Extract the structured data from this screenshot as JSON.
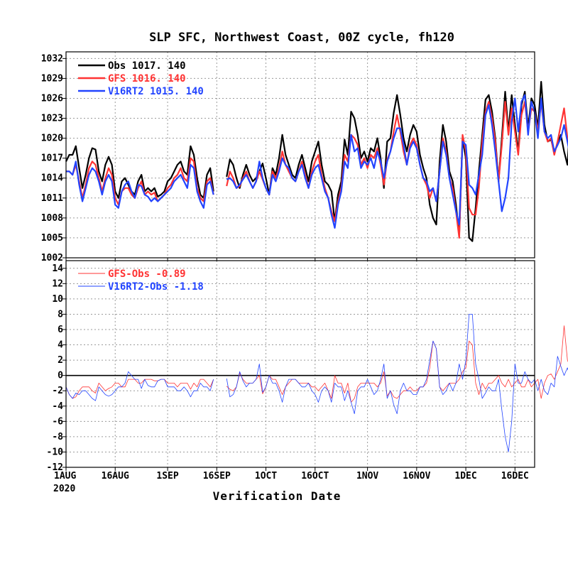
{
  "chart_data": [
    {
      "type": "line",
      "title": "SLP SFC, Northwest Coast, 00Z cycle, fh120",
      "xlabel": "Verification Date",
      "ylabel": "",
      "ylim": [
        1002,
        1033
      ],
      "yticks": [
        1002,
        1005,
        1008,
        1011,
        1014,
        1017,
        1020,
        1023,
        1026,
        1029,
        1032
      ],
      "x_start": "2020-08-01",
      "x_end": "2020-12-22",
      "xtick_labels": [
        "1AUG",
        "16AUG",
        "1SEP",
        "16SEP",
        "1OCT",
        "16OCT",
        "1NOV",
        "16NOV",
        "1DEC",
        "16DEC"
      ],
      "xtick_days": [
        0,
        15,
        31,
        46,
        61,
        76,
        92,
        107,
        122,
        137
      ],
      "x_sub_label": "2020",
      "grid": true,
      "legend_position": "top-left",
      "series": [
        {
          "name": "Obs",
          "legend_text": "Obs  1017.  140",
          "color": "#000000",
          "values": [
            1016.5,
            1017.5,
            1017.5,
            1018.8,
            1015.5,
            1012.5,
            1014.5,
            1017,
            1018.5,
            1018.3,
            1015,
            1013.5,
            1016,
            1017.2,
            1016,
            1012,
            1011,
            1013.5,
            1014,
            1013,
            1012,
            1011.5,
            1013.5,
            1014.5,
            1012,
            1012.5,
            1012,
            1012.5,
            1011.2,
            1011.5,
            1012,
            1013.5,
            1014,
            1015,
            1016,
            1016.5,
            1015,
            1014.5,
            1018.8,
            1017.5,
            1014,
            1011.5,
            1011,
            1014.5,
            1015.5,
            1012,
            null,
            null,
            null,
            1014.2,
            1016.8,
            1016,
            1014,
            1012.5,
            1014.5,
            1016,
            1014.5,
            1013.5,
            1014,
            1015,
            1016.2,
            1014,
            1011.5,
            1015.5,
            1014.5,
            1017,
            1020.5,
            1017.5,
            1016,
            1014.5,
            1014,
            1016,
            1017.5,
            1015.5,
            1013.5,
            1016.5,
            1018,
            1019.5,
            1016,
            1013.5,
            1013,
            1012,
            1007.5,
            1011.5,
            1013.5,
            1019.8,
            1017.5,
            1024,
            1023,
            1020.5,
            1017,
            1018,
            1016.5,
            1018.5,
            1018,
            1020,
            1017,
            1012.5,
            1019.5,
            1020,
            1023.8,
            1026.5,
            1023.5,
            1020,
            1018,
            1020.5,
            1022,
            1021,
            1017.5,
            1015.5,
            1014,
            1010,
            1008,
            1007,
            1016.5,
            1022,
            1019.5,
            1015,
            1013.5,
            1010,
            1005.5,
            1020,
            1017,
            1005,
            1004.5,
            1009.5,
            1015,
            1020.5,
            1025.8,
            1026.5,
            1024,
            1020,
            1013.5,
            1020,
            1027,
            1021,
            1026.5,
            1022,
            1018,
            1025,
            1027,
            1021.5,
            1026,
            1025,
            1021.5,
            1028.5,
            1022,
            1019.5,
            1019.8,
            1018,
            1019,
            1020.5,
            1018,
            1016,
            1023.5,
            1025,
            1017.5,
            1014,
            1009.5,
            1018.5,
            1020.5,
            1022.5
          ]
        },
        {
          "name": "GFS",
          "legend_text": "GFS  1016.  140",
          "color": "#ff3333",
          "values": [
            1015,
            1015,
            1014.5,
            1016,
            1013.5,
            1011,
            1013,
            1015.5,
            1016.5,
            1016,
            1014,
            1012,
            1014,
            1015.5,
            1014.5,
            1011,
            1010,
            1012,
            1012.5,
            1012.5,
            1011.5,
            1011,
            1012.5,
            1013.5,
            1011.5,
            1012,
            1011.5,
            1011.8,
            1010.5,
            1011,
            1011.5,
            1012.5,
            1013,
            1014,
            1014.5,
            1015.5,
            1014,
            1013.5,
            1017,
            1016.5,
            1012.5,
            1011,
            1010.5,
            1013.5,
            1014,
            1011.5,
            null,
            null,
            null,
            1012.8,
            1015,
            1014,
            1012.5,
            1012.8,
            1014,
            1015,
            1013.5,
            1012.5,
            1013.5,
            1015,
            1013.8,
            1012.5,
            1011.5,
            1015,
            1014,
            1015.5,
            1018,
            1016,
            1015,
            1014,
            1013.5,
            1015,
            1016.5,
            1014.5,
            1012.5,
            1015,
            1016.5,
            1017.5,
            1014.5,
            1012.5,
            1011,
            1009,
            1007.5,
            1010.5,
            1012.5,
            1017.5,
            1016.5,
            1020.5,
            1020,
            1019,
            1016,
            1017,
            1015.5,
            1017.5,
            1017,
            1018.5,
            1016,
            1013,
            1016.8,
            1018,
            1021,
            1023.5,
            1021,
            1018,
            1016,
            1019,
            1020,
            1019,
            1016,
            1014,
            1013,
            1011,
            1012.5,
            1010.5,
            1015,
            1020,
            1018,
            1014,
            1012.5,
            1009,
            1005,
            1020.5,
            1018,
            1009.5,
            1008.5,
            1008.5,
            1012.5,
            1019.5,
            1024,
            1025.5,
            1023,
            1019.5,
            1013.5,
            1019,
            1025.5,
            1020.5,
            1024.5,
            1021,
            1017.5,
            1023.5,
            1025.5,
            1021,
            1024.5,
            1024,
            1021,
            1025.5,
            1021,
            1019.5,
            1020,
            1017.5,
            1019.5,
            1022,
            1024.5,
            1020,
            1017,
            1014,
            1015,
            1018.5,
            1024.5,
            1018,
            1013,
            1012,
            1018,
            1020.5,
            1021.5
          ]
        },
        {
          "name": "V16RT2",
          "legend_text": "V16RT2  1015.  140",
          "color": "#2244ff",
          "values": [
            1015,
            1015,
            1014.5,
            1016.5,
            1013,
            1010.5,
            1012.5,
            1014.5,
            1015.5,
            1015,
            1013.5,
            1011.5,
            1013.5,
            1014.5,
            1013.5,
            1010,
            1009.5,
            1012,
            1013,
            1013.5,
            1012,
            1011,
            1013,
            1012.8,
            1011.5,
            1011.2,
            1010.5,
            1011,
            1010.5,
            1011,
            1011.5,
            1012,
            1012.5,
            1013.5,
            1014,
            1014.5,
            1013.5,
            1012.5,
            1016,
            1015.5,
            1012,
            1010.5,
            1009.5,
            1013,
            1013.5,
            1011.5,
            null,
            null,
            null,
            1013.8,
            1014,
            1013.5,
            1012.5,
            1013,
            1013.8,
            1014.5,
            1013.5,
            1012.5,
            1013.5,
            1016.5,
            1014,
            1012.5,
            1011.5,
            1014.5,
            1013.5,
            1015,
            1017,
            1016,
            1015.5,
            1014,
            1013.5,
            1015,
            1016,
            1014,
            1012.5,
            1014.5,
            1015.5,
            1016,
            1014,
            1012,
            1011,
            1008.5,
            1006.5,
            1010,
            1012,
            1016.5,
            1015.5,
            1020.5,
            1018,
            1018.5,
            1015.5,
            1016.5,
            1016,
            1017,
            1015.5,
            1018,
            1016.5,
            1014,
            1016.5,
            1018,
            1020,
            1021.5,
            1021.5,
            1019,
            1016,
            1018.5,
            1019.5,
            1018.5,
            1016,
            1014,
            1013.5,
            1012,
            1012.5,
            1010.5,
            1015,
            1019.5,
            1017.5,
            1014,
            1011.5,
            1009,
            1007,
            1019.5,
            1019,
            1013,
            1012.5,
            1011.5,
            1014.5,
            1017.5,
            1023.5,
            1025,
            1022,
            1018,
            1013.5,
            1009,
            1011,
            1014,
            1022.5,
            1026,
            1021,
            1025.5,
            1026.5,
            1020.5,
            1025.5,
            1024,
            1020,
            1026,
            1021,
            1020,
            1020.5,
            1018,
            1019,
            1020,
            1022,
            1019.5,
            1017,
            1014.5,
            1015.5,
            1018.5,
            1020.5,
            1013.5,
            1012,
            1017,
            1020.5,
            1021.8
          ]
        }
      ]
    },
    {
      "type": "line",
      "title": "",
      "xlabel": "Verification Date",
      "ylabel": "",
      "ylim": [
        -12,
        15
      ],
      "yticks": [
        -12,
        -10,
        -8,
        -6,
        -4,
        -2,
        0,
        2,
        4,
        6,
        8,
        10,
        12,
        14
      ],
      "grid": true,
      "legend_position": "top-left",
      "zero_line": true,
      "series": [
        {
          "name": "GFS-Obs",
          "legend_text": "GFS-Obs -0.89",
          "color": "#ff3333",
          "values": [
            -1.5,
            -2.5,
            -3,
            -2.8,
            -2,
            -1.5,
            -1.5,
            -1.5,
            -2,
            -2.3,
            -1,
            -1.5,
            -2,
            -1.7,
            -1.5,
            -1,
            -1,
            -1.5,
            -1.5,
            -0.5,
            -0.5,
            -0.5,
            -1,
            -1,
            -0.5,
            -0.5,
            -0.5,
            -0.7,
            -0.7,
            -0.5,
            -0.5,
            -1,
            -1,
            -1,
            -1.5,
            -1,
            -1,
            -1,
            -1.8,
            -1,
            -1.5,
            -0.5,
            -0.5,
            -1,
            -1.5,
            -0.5,
            null,
            null,
            null,
            -1.4,
            -1.8,
            -2,
            -1.5,
            0.3,
            -0.5,
            -1,
            -1,
            -1,
            -0.5,
            0,
            -2.4,
            -1.5,
            0,
            -0.5,
            -0.5,
            -1.5,
            -2.5,
            -1.5,
            -1,
            -0.5,
            -0.5,
            -1,
            -1,
            -1,
            -1,
            -1.5,
            -1.5,
            -2,
            -1.5,
            -1,
            -2,
            -3,
            0,
            -1,
            -1,
            -2.3,
            -1,
            -3.5,
            -3,
            -1.5,
            -1,
            -1,
            -1,
            -1,
            -1,
            -1.5,
            -1,
            0.5,
            -2.7,
            -2,
            -2.8,
            -3,
            -2.5,
            -2,
            -2,
            -1.5,
            -2,
            -2,
            -1.5,
            -1.5,
            -1,
            1,
            4.5,
            3.5,
            -1.5,
            -2,
            -1.5,
            -1,
            -1,
            -1,
            -0.5,
            0.5,
            1,
            4.5,
            4,
            -1,
            -2.5,
            -1,
            -1.8,
            -1,
            -1,
            -0.5,
            0,
            -1,
            -1.5,
            -0.5,
            -1.5,
            -1,
            -0.5,
            -1.5,
            -1.5,
            -0.5,
            -1.5,
            -1,
            -0.5,
            -3,
            -1,
            0,
            0.2,
            -0.5,
            0.5,
            1.5,
            6.5,
            2,
            1,
            0.5,
            0,
            -2.5,
            -4.5,
            4.5,
            -0.5,
            -1,
            -1
          ]
        },
        {
          "name": "V16RT2-Obs",
          "legend_text": "V16RT2-Obs -1.18",
          "color": "#2244ff",
          "values": [
            -1.5,
            -2.5,
            -3,
            -2.3,
            -2.5,
            -2,
            -2,
            -2.5,
            -3,
            -3.3,
            -1.5,
            -2,
            -2.5,
            -2.7,
            -2.5,
            -2,
            -1.5,
            -1.5,
            -1,
            0.5,
            0,
            -0.5,
            -0.5,
            -1.7,
            -0.5,
            -1.3,
            -1.5,
            -1.5,
            -0.7,
            -0.5,
            -0.5,
            -1.5,
            -1.5,
            -1.5,
            -2,
            -2,
            -1.5,
            -2,
            -2.8,
            -2,
            -2,
            -1,
            -1.5,
            -1.5,
            -2,
            -0.5,
            null,
            null,
            null,
            -0.4,
            -2.8,
            -2.5,
            -1.5,
            0.5,
            -0.7,
            -1.5,
            -1,
            -1,
            -0.5,
            1.5,
            -2.2,
            -1.5,
            0,
            -1,
            -1,
            -2,
            -3.5,
            -1.5,
            -0.5,
            -0.5,
            -0.5,
            -1,
            -1.5,
            -1.5,
            -1,
            -2,
            -2.5,
            -3.5,
            -2,
            -1.5,
            -2,
            -3.5,
            -1,
            -1.5,
            -1.5,
            -3.3,
            -2,
            -3.5,
            -5,
            -2,
            -1.5,
            -1.5,
            -0.5,
            -1.5,
            -2.5,
            -2,
            -0.5,
            1.5,
            -3,
            -2,
            -3.8,
            -5,
            -2,
            -1,
            -2,
            -2,
            -2.5,
            -2.5,
            -1.5,
            -1.5,
            -0.5,
            2,
            4.5,
            3.5,
            -1.5,
            -2.5,
            -2,
            -1,
            -2,
            -1,
            1.5,
            -0.5,
            2,
            8,
            8,
            1.5,
            -0.5,
            -3,
            -2.3,
            -1.5,
            -2,
            -2,
            -0.5,
            -4.5,
            -8,
            -10,
            -6,
            1.5,
            -1,
            -1,
            0.5,
            -0.5,
            -1,
            -0.5,
            -2,
            -0.5,
            -2,
            -2.5,
            -1,
            -1.5,
            2.5,
            1.2,
            0,
            1,
            -0.5,
            4,
            4.5,
            -0.5,
            0.5,
            1,
            -2.5,
            -4.5,
            4,
            -1.5,
            -0.5,
            -0.7
          ]
        }
      ]
    }
  ]
}
